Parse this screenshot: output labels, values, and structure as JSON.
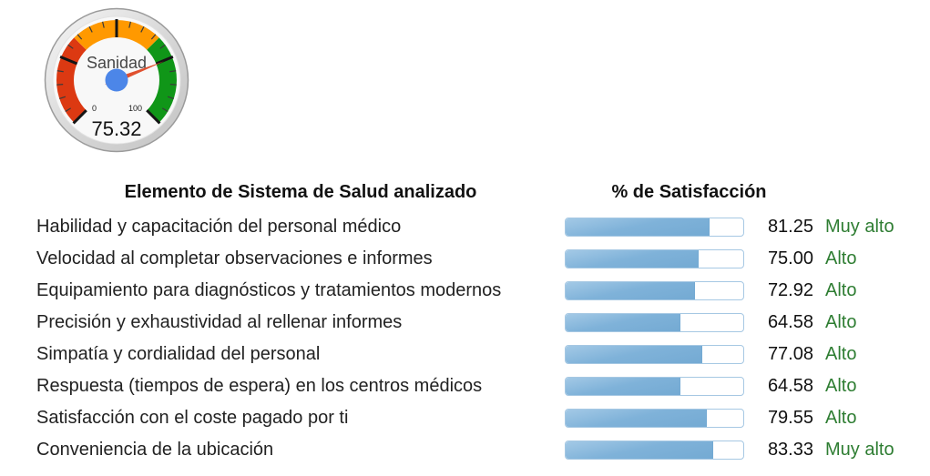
{
  "theme": {
    "bar_fill": "#7fb2d9",
    "bar_fill_light": "#a3c9e6",
    "bar_fill_dark": "#74aad3",
    "bar_border": "#a6c8e3",
    "rating_green": "#2e7d32"
  },
  "gauge": {
    "label": "Sanidad",
    "value": 75.32,
    "value_display": "75.32",
    "min_label": "0",
    "max_label": "100",
    "colors": {
      "red": "#DC3912",
      "orange": "#FF9900",
      "green": "#109618",
      "needle": "#E0502E",
      "needle_edge": "#B83C1E",
      "hub": "#4C86E8",
      "hub_edge": "#3A71D1"
    }
  },
  "table": {
    "header_element": "Elemento de Sistema de Salud analizado",
    "header_satisfaction": "% de Satisfacción",
    "rows": [
      {
        "label": "Habilidad y capacitación del personal médico",
        "value": 81.25,
        "value_display": "81.25",
        "rating": "Muy alto"
      },
      {
        "label": "Velocidad al completar observaciones e informes",
        "value": 75.0,
        "value_display": "75.00",
        "rating": "Alto"
      },
      {
        "label": "Equipamiento para diagnósticos y tratamientos modernos",
        "value": 72.92,
        "value_display": "72.92",
        "rating": "Alto"
      },
      {
        "label": "Precisión y exhaustividad al rellenar informes",
        "value": 64.58,
        "value_display": "64.58",
        "rating": "Alto"
      },
      {
        "label": "Simpatía y cordialidad del personal",
        "value": 77.08,
        "value_display": "77.08",
        "rating": "Alto"
      },
      {
        "label": "Respuesta (tiempos de espera) en los centros médicos",
        "value": 64.58,
        "value_display": "64.58",
        "rating": "Alto"
      },
      {
        "label": "Satisfacción con el coste pagado por ti",
        "value": 79.55,
        "value_display": "79.55",
        "rating": "Alto"
      },
      {
        "label": "Conveniencia de la ubicación",
        "value": 83.33,
        "value_display": "83.33",
        "rating": "Muy alto"
      }
    ]
  },
  "chart_data": [
    {
      "type": "gauge",
      "title": "Sanidad",
      "value": 75.32,
      "min": 0,
      "max": 100,
      "major_ticks": [
        0,
        25,
        50,
        75,
        100
      ],
      "ranges": [
        {
          "from": 0,
          "to": 33.33,
          "color": "#DC3912"
        },
        {
          "from": 33.33,
          "to": 66.67,
          "color": "#FF9900"
        },
        {
          "from": 66.67,
          "to": 100,
          "color": "#109618"
        }
      ]
    },
    {
      "type": "bar",
      "orientation": "horizontal",
      "title": "% de Satisfacción",
      "xlabel": "Elemento de Sistema de Salud analizado",
      "ylabel": "% de Satisfacción",
      "xlim": [
        0,
        100
      ],
      "categories": [
        "Habilidad y capacitación del personal médico",
        "Velocidad al completar observaciones e informes",
        "Equipamiento para diagnósticos y tratamientos modernos",
        "Precisión y exhaustividad al rellenar informes",
        "Simpatía y cordialidad del personal",
        "Respuesta (tiempos de espera) en los centros médicos",
        "Satisfacción con el coste pagado por ti",
        "Conveniencia de la ubicación"
      ],
      "values": [
        81.25,
        75.0,
        72.92,
        64.58,
        77.08,
        64.58,
        79.55,
        83.33
      ],
      "annotations": [
        "Muy alto",
        "Alto",
        "Alto",
        "Alto",
        "Alto",
        "Alto",
        "Alto",
        "Muy alto"
      ]
    }
  ]
}
